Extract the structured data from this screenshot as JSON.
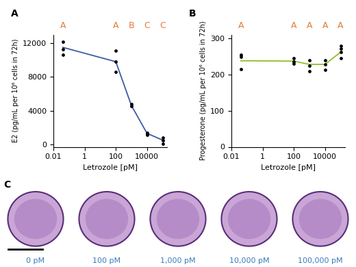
{
  "chart_data": [
    {
      "type": "line",
      "panel": "A",
      "x": [
        0.04,
        100,
        1000,
        10000,
        100000
      ],
      "values": [
        11500,
        9800,
        4600,
        1300,
        500
      ],
      "points": [
        [
          12200,
          11300,
          10600
        ],
        [
          11100,
          9800,
          8600
        ],
        [
          4800,
          4500
        ],
        [
          1400,
          1200,
          1100
        ],
        [
          800,
          450,
          100
        ]
      ],
      "significance_letters": [
        "A",
        "A",
        "B",
        "C",
        "C"
      ],
      "color": "#3b5ba5",
      "marker": "o",
      "log": "x",
      "x_label": "Letrozole [pM]",
      "y_label": "E2 (pg/mL per 10⁶ cells in 72h)",
      "xlim": [
        0.01,
        200000
      ],
      "xticks": [
        0.01,
        1,
        100,
        10000
      ],
      "ylim": [
        -300,
        13000
      ],
      "yticks": [
        0,
        4000,
        8000,
        12000
      ]
    },
    {
      "type": "line",
      "panel": "B",
      "x": [
        0.04,
        100,
        1000,
        10000,
        100000
      ],
      "values": [
        238,
        237,
        228,
        228,
        262
      ],
      "points": [
        [
          255,
          248,
          215
        ],
        [
          245,
          235,
          230
        ],
        [
          240,
          225,
          210
        ],
        [
          240,
          228,
          213
        ],
        [
          280,
          272,
          262,
          245
        ]
      ],
      "significance_letters": [
        "A",
        "A",
        "A",
        "A",
        "A"
      ],
      "color": "#8fbf2a",
      "marker": "o",
      "log": "x",
      "x_label": "Letrozole [pM]",
      "y_label": "Progesterone (pg/mL per 10⁶ cells in 72h)",
      "xlim": [
        0.01,
        200000
      ],
      "xticks": [
        0.01,
        1,
        100,
        10000
      ],
      "ylim": [
        0,
        310
      ],
      "yticks": [
        0,
        100,
        200,
        300
      ]
    }
  ],
  "image_panel": {
    "panel": "C",
    "captions": [
      "0 pM",
      "100 pM",
      "1,000 pM",
      "10,000 pM",
      "100,000 pM"
    ]
  }
}
